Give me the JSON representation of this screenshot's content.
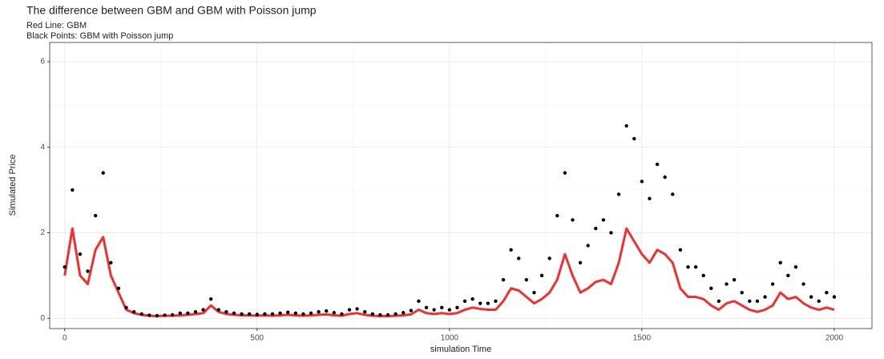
{
  "chart_data": {
    "type": "line",
    "title": "The difference between GBM and GBM with Poisson jump",
    "subtitle": [
      "Red Line: GBM",
      "Black Points: GBM with Poisson jump"
    ],
    "x_label": "simulation Time",
    "y_label": "Simulated Price",
    "x": [
      0,
      20,
      40,
      60,
      80,
      100,
      120,
      140,
      160,
      180,
      200,
      220,
      240,
      260,
      280,
      300,
      320,
      340,
      360,
      380,
      400,
      420,
      440,
      460,
      480,
      500,
      520,
      540,
      560,
      580,
      600,
      620,
      640,
      660,
      680,
      700,
      720,
      740,
      760,
      780,
      800,
      820,
      840,
      860,
      880,
      900,
      920,
      940,
      960,
      980,
      1000,
      1020,
      1040,
      1060,
      1080,
      1100,
      1120,
      1140,
      1160,
      1180,
      1200,
      1220,
      1240,
      1260,
      1280,
      1300,
      1320,
      1340,
      1360,
      1380,
      1400,
      1420,
      1440,
      1460,
      1480,
      1500,
      1520,
      1540,
      1560,
      1580,
      1600,
      1620,
      1640,
      1660,
      1680,
      1700,
      1720,
      1740,
      1760,
      1780,
      1800,
      1820,
      1840,
      1860,
      1880,
      1900,
      1920,
      1940,
      1960,
      1980,
      2000
    ],
    "series": [
      {
        "name": "GBM",
        "mark": "line",
        "color": "#f03030",
        "values": [
          1.0,
          2.1,
          1.0,
          0.8,
          1.6,
          1.9,
          1.0,
          0.6,
          0.2,
          0.12,
          0.08,
          0.06,
          0.05,
          0.06,
          0.06,
          0.07,
          0.08,
          0.1,
          0.12,
          0.3,
          0.15,
          0.1,
          0.08,
          0.07,
          0.07,
          0.06,
          0.07,
          0.06,
          0.07,
          0.08,
          0.07,
          0.06,
          0.07,
          0.08,
          0.09,
          0.07,
          0.06,
          0.1,
          0.12,
          0.08,
          0.06,
          0.05,
          0.05,
          0.06,
          0.07,
          0.09,
          0.2,
          0.12,
          0.1,
          0.12,
          0.1,
          0.12,
          0.2,
          0.25,
          0.22,
          0.2,
          0.2,
          0.4,
          0.7,
          0.65,
          0.5,
          0.35,
          0.45,
          0.6,
          0.9,
          1.5,
          1.0,
          0.6,
          0.7,
          0.85,
          0.9,
          0.8,
          1.3,
          2.1,
          1.8,
          1.5,
          1.3,
          1.6,
          1.5,
          1.3,
          0.7,
          0.5,
          0.5,
          0.45,
          0.3,
          0.2,
          0.35,
          0.4,
          0.3,
          0.2,
          0.15,
          0.2,
          0.3,
          0.6,
          0.45,
          0.5,
          0.35,
          0.25,
          0.2,
          0.25,
          0.2
        ]
      },
      {
        "name": "GBM with Poisson jump",
        "mark": "point",
        "color": "#000000",
        "values": [
          1.2,
          3.0,
          1.5,
          1.1,
          2.4,
          3.4,
          1.3,
          0.7,
          0.25,
          0.15,
          0.1,
          0.07,
          0.06,
          0.07,
          0.08,
          0.12,
          0.12,
          0.15,
          0.2,
          0.45,
          0.2,
          0.15,
          0.12,
          0.1,
          0.1,
          0.09,
          0.1,
          0.1,
          0.12,
          0.14,
          0.12,
          0.1,
          0.12,
          0.15,
          0.17,
          0.13,
          0.1,
          0.2,
          0.22,
          0.15,
          0.1,
          0.08,
          0.08,
          0.1,
          0.13,
          0.18,
          0.4,
          0.25,
          0.2,
          0.25,
          0.2,
          0.25,
          0.4,
          0.45,
          0.35,
          0.35,
          0.4,
          0.9,
          1.6,
          1.4,
          0.9,
          0.6,
          1.0,
          1.4,
          2.4,
          3.4,
          2.3,
          1.3,
          1.7,
          2.1,
          2.3,
          2.0,
          2.9,
          4.5,
          4.2,
          3.2,
          2.8,
          3.6,
          3.3,
          2.9,
          1.6,
          1.2,
          1.2,
          1.0,
          0.7,
          0.4,
          0.8,
          0.9,
          0.6,
          0.4,
          0.4,
          0.5,
          0.8,
          1.3,
          1.0,
          1.2,
          0.8,
          0.5,
          0.4,
          0.6,
          0.5
        ]
      }
    ],
    "xlim": [
      -39,
      2098
    ],
    "ylim": [
      -0.24,
      6.45
    ],
    "xticks": [
      0,
      500,
      1000,
      1500,
      2000
    ],
    "yticks": [
      0,
      2,
      4,
      6
    ],
    "xminor_ticks": [
      250,
      750,
      1250,
      1750
    ],
    "yminor_ticks": [
      1,
      3,
      5
    ],
    "grid": true
  }
}
